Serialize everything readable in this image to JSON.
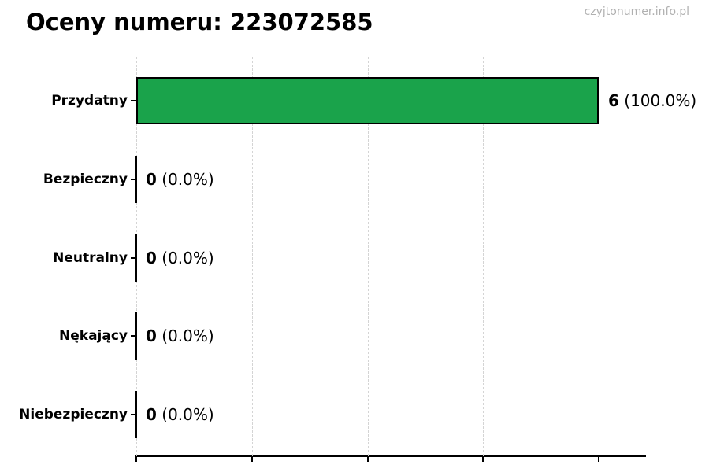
{
  "watermark": "czyjtonumer.info.pl",
  "chart_data": {
    "type": "bar",
    "orientation": "horizontal",
    "title": "Oceny numeru: 223072585",
    "categories": [
      "Przydatny",
      "Bezpieczny",
      "Neutralny",
      "Nękający",
      "Niebezpieczny"
    ],
    "values": [
      6,
      0,
      0,
      0,
      0
    ],
    "value_labels": [
      "6",
      "0",
      "0",
      "0",
      "0"
    ],
    "pct_labels": [
      "(100.0%)",
      "(0.0%)",
      "(0.0%)",
      "(0.0%)",
      "(0.0%)"
    ],
    "xlabel": "",
    "ylabel": "",
    "xlim": [
      0,
      6.6
    ],
    "xticks": [
      0,
      1.5,
      3,
      4.5,
      6
    ],
    "xtick_labels_visible": false,
    "grid": "vertical-dashed",
    "grid_color": "#d4d4d4",
    "bar_color": "#1aa34b",
    "bar_border_color": "#000000",
    "legend": null
  }
}
